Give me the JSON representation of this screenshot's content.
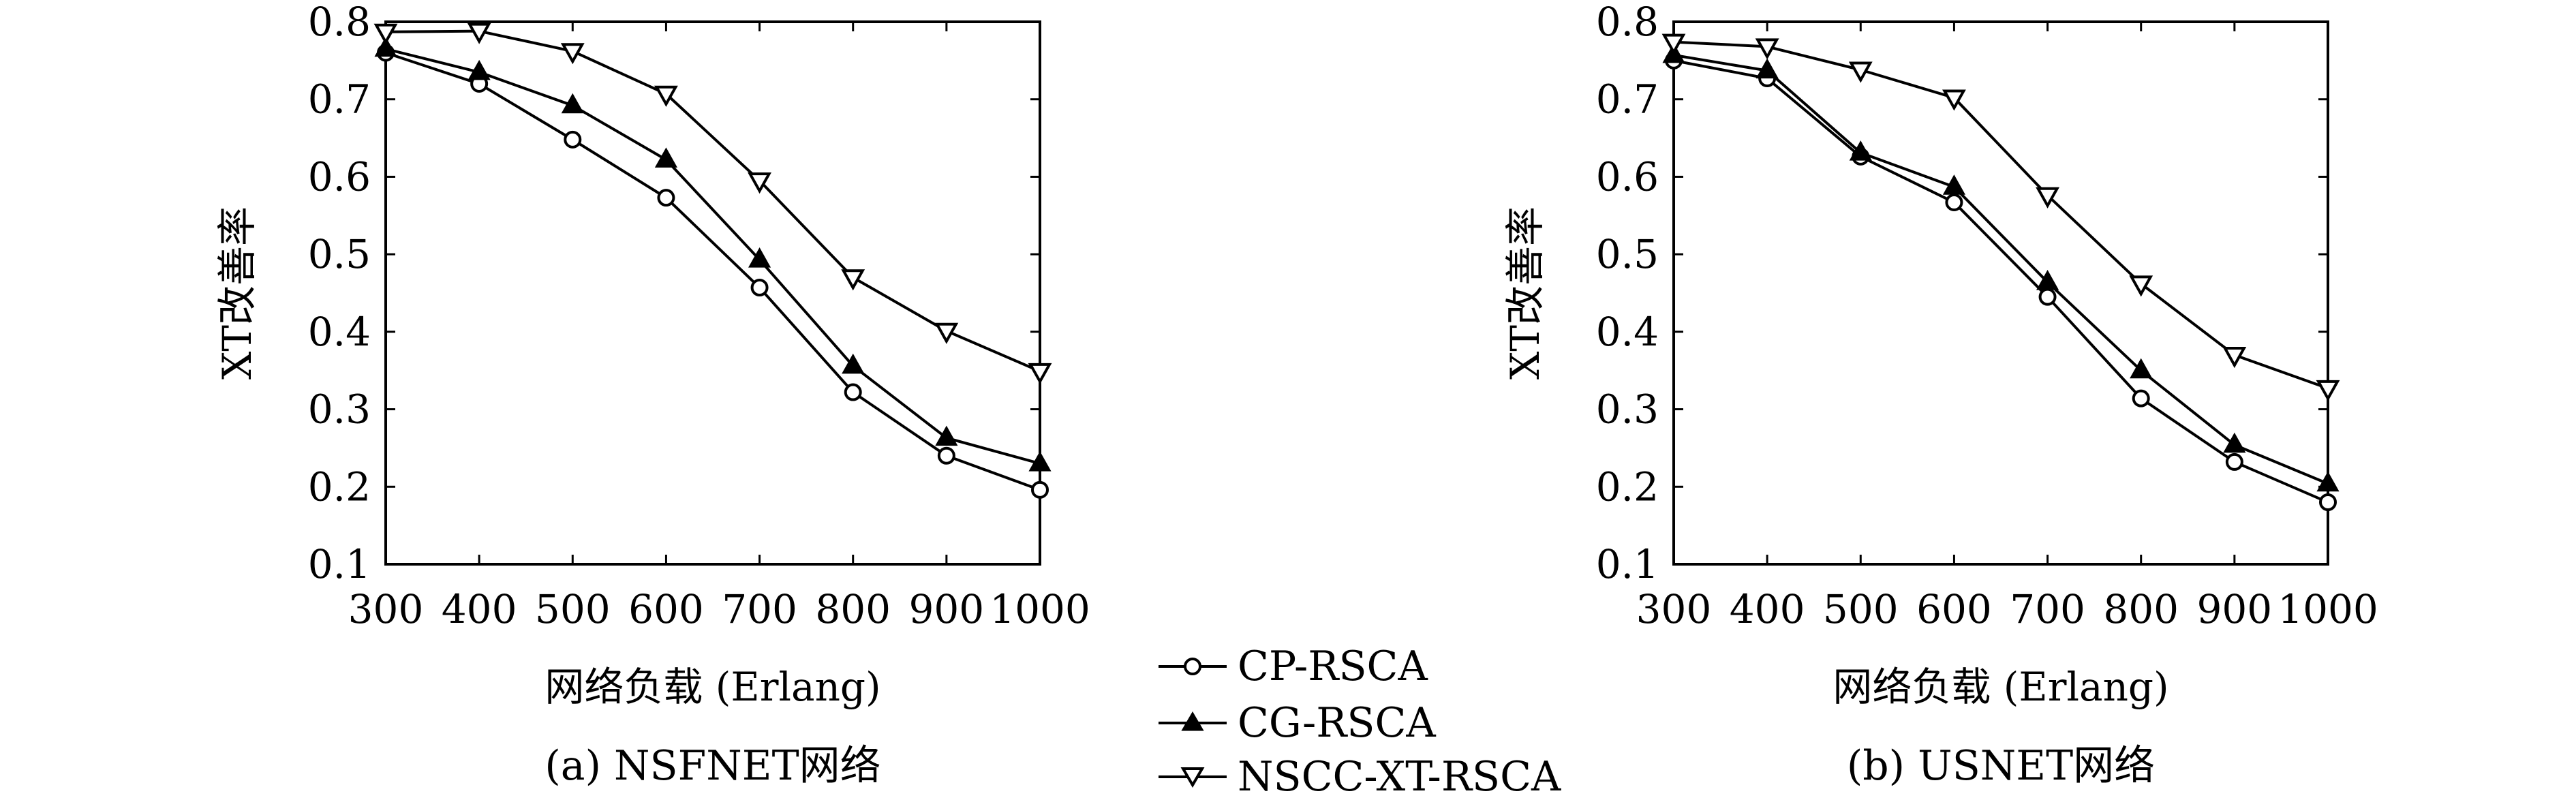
{
  "chart_data": [
    {
      "type": "line",
      "title": "",
      "caption": "(a) NSFNET网络",
      "xlabel": "网络负载 (Erlang)",
      "ylabel": "XT改善率",
      "x": [
        300,
        400,
        500,
        600,
        700,
        800,
        900,
        1000
      ],
      "xlim": [
        300,
        1000
      ],
      "ylim": [
        0.1,
        0.8
      ],
      "xticks": [
        "300",
        "400",
        "500",
        "600",
        "700",
        "800",
        "900",
        "1000"
      ],
      "yticks": [
        "0.1",
        "0.2",
        "0.3",
        "0.4",
        "0.5",
        "0.6",
        "0.7",
        "0.8"
      ],
      "grid": false,
      "series": [
        {
          "name": "CP-RSCA",
          "marker": "circle",
          "values": [
            0.76,
            0.72,
            0.648,
            0.573,
            0.457,
            0.322,
            0.24,
            0.196
          ]
        },
        {
          "name": "CG-RSCA",
          "marker": "triangle-up",
          "values": [
            0.765,
            0.735,
            0.692,
            0.622,
            0.493,
            0.356,
            0.263,
            0.23
          ]
        },
        {
          "name": "NSCC-XT-RSCA",
          "marker": "triangle-down",
          "values": [
            0.787,
            0.788,
            0.762,
            0.707,
            0.595,
            0.47,
            0.401,
            0.349
          ]
        }
      ]
    },
    {
      "type": "line",
      "title": "",
      "caption": "(b) USNET网络",
      "xlabel": "网络负载 (Erlang)",
      "ylabel": "XT改善率",
      "x": [
        300,
        400,
        500,
        600,
        700,
        800,
        900,
        1000
      ],
      "xlim": [
        300,
        1000
      ],
      "ylim": [
        0.1,
        0.8
      ],
      "xticks": [
        "300",
        "400",
        "500",
        "600",
        "700",
        "800",
        "900",
        "1000"
      ],
      "yticks": [
        "0.1",
        "0.2",
        "0.3",
        "0.4",
        "0.5",
        "0.6",
        "0.7",
        "0.8"
      ],
      "grid": false,
      "series": [
        {
          "name": "CP-RSCA",
          "marker": "circle",
          "values": [
            0.75,
            0.727,
            0.626,
            0.567,
            0.445,
            0.314,
            0.232,
            0.18
          ]
        },
        {
          "name": "CG-RSCA",
          "marker": "triangle-up",
          "values": [
            0.757,
            0.737,
            0.631,
            0.587,
            0.464,
            0.35,
            0.254,
            0.204
          ]
        },
        {
          "name": "NSCC-XT-RSCA",
          "marker": "triangle-down",
          "values": [
            0.774,
            0.768,
            0.738,
            0.702,
            0.576,
            0.462,
            0.37,
            0.327
          ]
        }
      ]
    }
  ],
  "legend": {
    "position": "bottom-center",
    "items": [
      {
        "name": "CP-RSCA",
        "marker": "circle"
      },
      {
        "name": "CG-RSCA",
        "marker": "triangle-up"
      },
      {
        "name": "NSCC-XT-RSCA",
        "marker": "triangle-down"
      }
    ]
  }
}
